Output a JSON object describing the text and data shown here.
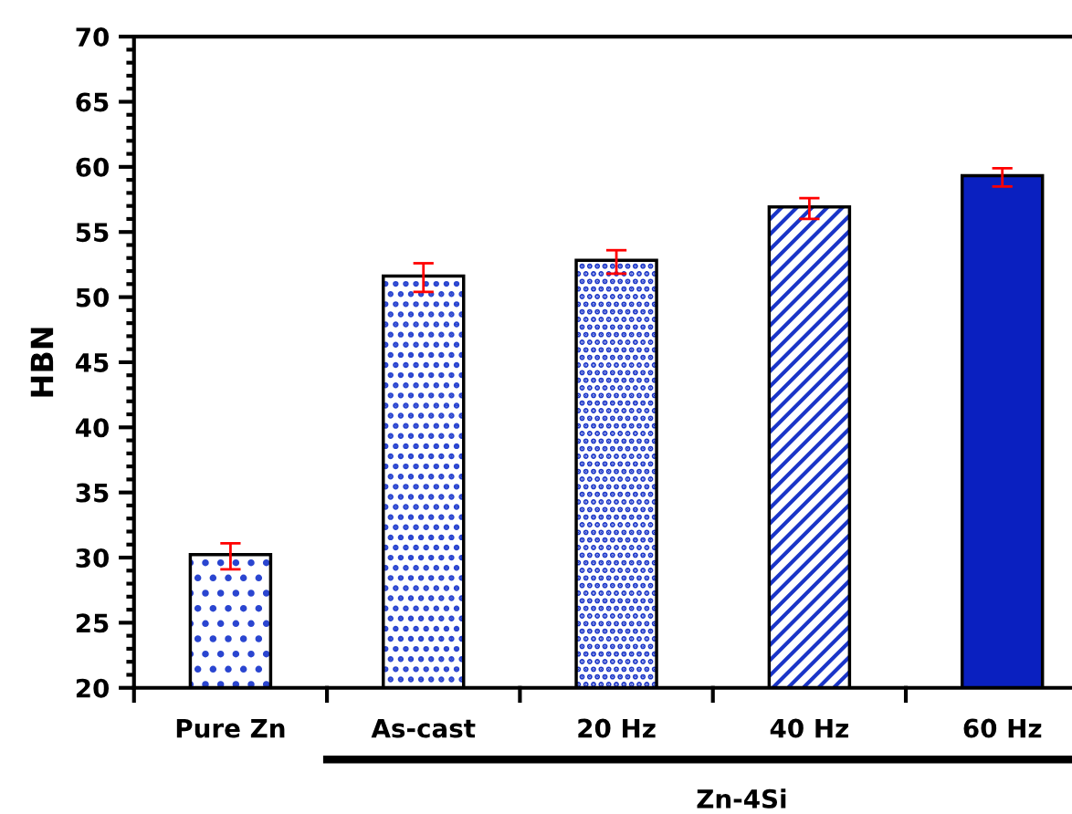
{
  "chart_data": {
    "type": "bar",
    "ylabel": "HBN",
    "categories": [
      "Pure Zn",
      "As-cast",
      "20 Hz",
      "40 Hz",
      "60 Hz"
    ],
    "values": [
      30.1,
      51.5,
      52.7,
      56.8,
      59.2
    ],
    "errors": [
      1.0,
      1.1,
      0.9,
      0.8,
      0.7
    ],
    "colors": [
      "#2a45d0",
      "#2a45d0",
      "#1a35c8",
      "#1a35c8",
      "#0a20c0"
    ],
    "ylim": [
      20,
      70
    ],
    "yticks": [
      20,
      25,
      30,
      35,
      40,
      45,
      50,
      55,
      60,
      65,
      70
    ],
    "annotations": [
      "Zn-4Si"
    ],
    "grid": false,
    "legend": false
  }
}
